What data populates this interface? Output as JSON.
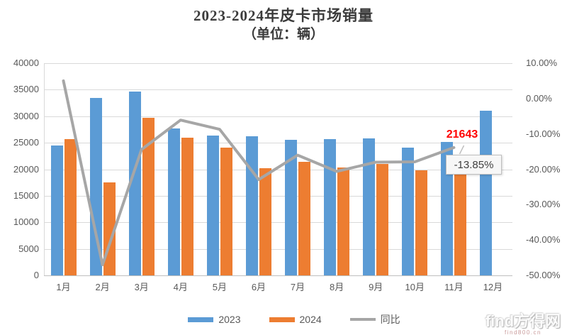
{
  "title": {
    "line1": "2023-2024年皮卡市场销量",
    "line2": "（单位：辆）"
  },
  "chart_data": {
    "type": "combo-bar-line",
    "categories": [
      "1月",
      "2月",
      "3月",
      "4月",
      "5月",
      "6月",
      "7月",
      "8月",
      "9月",
      "10月",
      "11月",
      "12月"
    ],
    "series": [
      {
        "name": "2023",
        "type": "bar",
        "axis": "left",
        "color": "#5B9BD5",
        "values": [
          24500,
          33400,
          34700,
          27700,
          26400,
          26200,
          25500,
          25700,
          25800,
          24100,
          25100,
          31000
        ]
      },
      {
        "name": "2024",
        "type": "bar",
        "axis": "left",
        "color": "#ED7D31",
        "values": [
          25750,
          17500,
          29700,
          26000,
          24100,
          20200,
          21400,
          20400,
          21000,
          19800,
          21643,
          null
        ]
      },
      {
        "name": "同比",
        "type": "line",
        "axis": "right",
        "color": "#A6A6A6",
        "unit": "%",
        "values": [
          5.0,
          -47.0,
          -14.4,
          -6.1,
          -8.7,
          -22.9,
          -16.0,
          -20.6,
          -18.0,
          -17.9,
          -13.85,
          null
        ]
      }
    ],
    "left_axis": {
      "min": 0,
      "max": 40000,
      "step": 5000,
      "ticks": [
        "40000",
        "35000",
        "30000",
        "25000",
        "20000",
        "15000",
        "10000",
        "5000",
        "0"
      ]
    },
    "right_axis": {
      "min": -50,
      "max": 10,
      "step": 10,
      "ticks": [
        "10.00%",
        "0.00%",
        "-10.00%",
        "-20.00%",
        "-30.00%",
        "-40.00%",
        "-50.00%"
      ]
    },
    "grid": true,
    "legend_position": "bottom",
    "annotations": {
      "value_label": "21643",
      "value_label_color": "#FF0000",
      "tooltip_text": "-13.85%",
      "annotated_month": "11月"
    }
  },
  "legend": {
    "items": [
      "2023",
      "2024",
      "同比"
    ]
  },
  "watermark": {
    "logo": "find",
    "brand": "方得网",
    "domain": "find800.cn"
  }
}
